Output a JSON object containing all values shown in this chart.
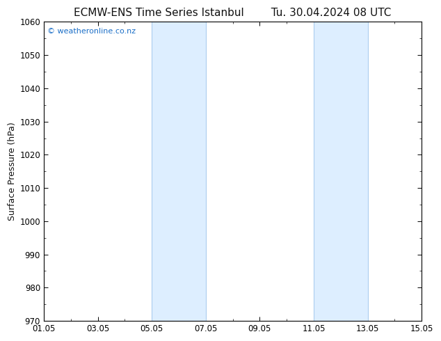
{
  "title_left": "ECMW-ENS Time Series Istanbul",
  "title_right": "Tu. 30.04.2024 08 UTC",
  "ylabel": "Surface Pressure (hPa)",
  "ylim": [
    970,
    1060
  ],
  "yticks": [
    970,
    980,
    990,
    1000,
    1010,
    1020,
    1030,
    1040,
    1050,
    1060
  ],
  "xlim_start": 0,
  "xlim_end": 14,
  "xtick_labels": [
    "01.05",
    "03.05",
    "05.05",
    "07.05",
    "09.05",
    "11.05",
    "13.05",
    "15.05"
  ],
  "xtick_positions": [
    0,
    2,
    4,
    6,
    8,
    10,
    12,
    14
  ],
  "shaded_regions": [
    {
      "x_start": 4,
      "x_end": 6
    },
    {
      "x_start": 10,
      "x_end": 12
    }
  ],
  "shade_color": "#ddeeff",
  "shade_edge_color": "#aaccee",
  "background_color": "#ffffff",
  "plot_bg_color": "#ffffff",
  "spine_color": "#000000",
  "tick_color": "#000000",
  "watermark": "© weatheronline.co.nz",
  "watermark_color": "#1a6ec7",
  "title_color": "#111111",
  "title_fontsize": 11,
  "tick_fontsize": 8.5,
  "ylabel_fontsize": 9,
  "minor_xtick_interval": 1
}
